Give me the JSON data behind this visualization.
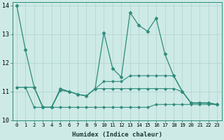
{
  "xlabel": "Humidex (Indice chaleur)",
  "xlim": [
    -0.5,
    23.5
  ],
  "ylim": [
    10,
    14.1
  ],
  "yticks": [
    10,
    11,
    12,
    13,
    14
  ],
  "xticks": [
    0,
    1,
    2,
    3,
    4,
    5,
    6,
    7,
    8,
    9,
    10,
    11,
    12,
    13,
    14,
    15,
    16,
    17,
    18,
    19,
    20,
    21,
    22,
    23
  ],
  "bg_color": "#ceeae6",
  "line_color": "#2e8b7a",
  "grid_color": "#aed4ce",
  "lines": [
    {
      "y": [
        14.0,
        12.45,
        11.15,
        10.45,
        10.45,
        11.1,
        11.0,
        10.9,
        10.85,
        11.1,
        13.05,
        11.8,
        11.5,
        13.75,
        13.3,
        13.1,
        13.55,
        12.3,
        11.55,
        11.0,
        10.6,
        10.6,
        10.6,
        10.55
      ],
      "marker": "D",
      "ms": 2.5,
      "lw": 0.9
    },
    {
      "y": [
        11.15,
        11.15,
        11.15,
        10.45,
        10.45,
        11.05,
        11.0,
        10.9,
        10.85,
        11.1,
        11.35,
        11.35,
        11.35,
        11.55,
        11.55,
        11.55,
        11.55,
        11.55,
        11.55,
        11.0,
        10.6,
        10.6,
        10.6,
        10.55
      ],
      "marker": "D",
      "ms": 2.0,
      "lw": 0.8
    },
    {
      "y": [
        11.15,
        11.15,
        11.15,
        10.45,
        10.45,
        11.05,
        11.0,
        10.9,
        10.85,
        11.1,
        11.1,
        11.1,
        11.1,
        11.1,
        11.1,
        11.1,
        11.1,
        11.1,
        11.1,
        11.0,
        10.6,
        10.6,
        10.6,
        10.55
      ],
      "marker": "D",
      "ms": 2.0,
      "lw": 0.8
    },
    {
      "y": [
        11.15,
        11.15,
        10.45,
        10.45,
        10.45,
        10.45,
        10.45,
        10.45,
        10.45,
        10.45,
        10.45,
        10.45,
        10.45,
        10.45,
        10.45,
        10.45,
        10.55,
        10.55,
        10.55,
        10.55,
        10.55,
        10.55,
        10.55,
        10.55
      ],
      "marker": "D",
      "ms": 2.0,
      "lw": 0.8
    }
  ]
}
